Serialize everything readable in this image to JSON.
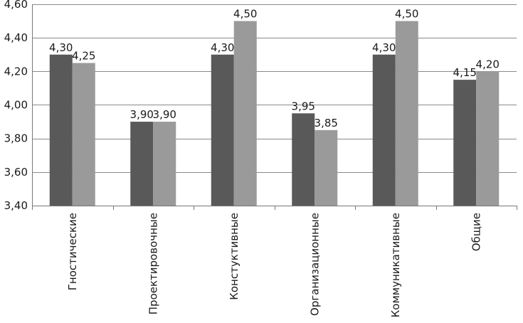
{
  "chart_data": {
    "type": "bar",
    "categories": [
      "Гностические",
      "Проектировочные",
      "Констуктивные",
      "Организационные",
      "Коммуникативные",
      "Общие"
    ],
    "series": [
      {
        "values": [
          4.3,
          3.9,
          4.3,
          3.95,
          4.3,
          4.15
        ],
        "color": "#595959"
      },
      {
        "values": [
          4.25,
          3.9,
          4.5,
          3.85,
          4.5,
          4.2
        ],
        "color": "#9a9a9a"
      }
    ],
    "data_labels": [
      [
        "4,30",
        "3,90",
        "4,30",
        "3,95",
        "4,30",
        "4,15"
      ],
      [
        "4,25",
        "3,90",
        "4,50",
        "3,85",
        "4,50",
        "4,20"
      ]
    ],
    "y_ticks": [
      3.4,
      3.6,
      3.8,
      4.0,
      4.2,
      4.4,
      4.6
    ],
    "y_tick_labels": [
      "3,40",
      "3,60",
      "3,80",
      "4,00",
      "4,20",
      "4,40",
      "4,60"
    ],
    "ylim": [
      3.4,
      4.6
    ],
    "grid": true,
    "legend": "none",
    "title": "",
    "xlabel": "",
    "ylabel": ""
  }
}
